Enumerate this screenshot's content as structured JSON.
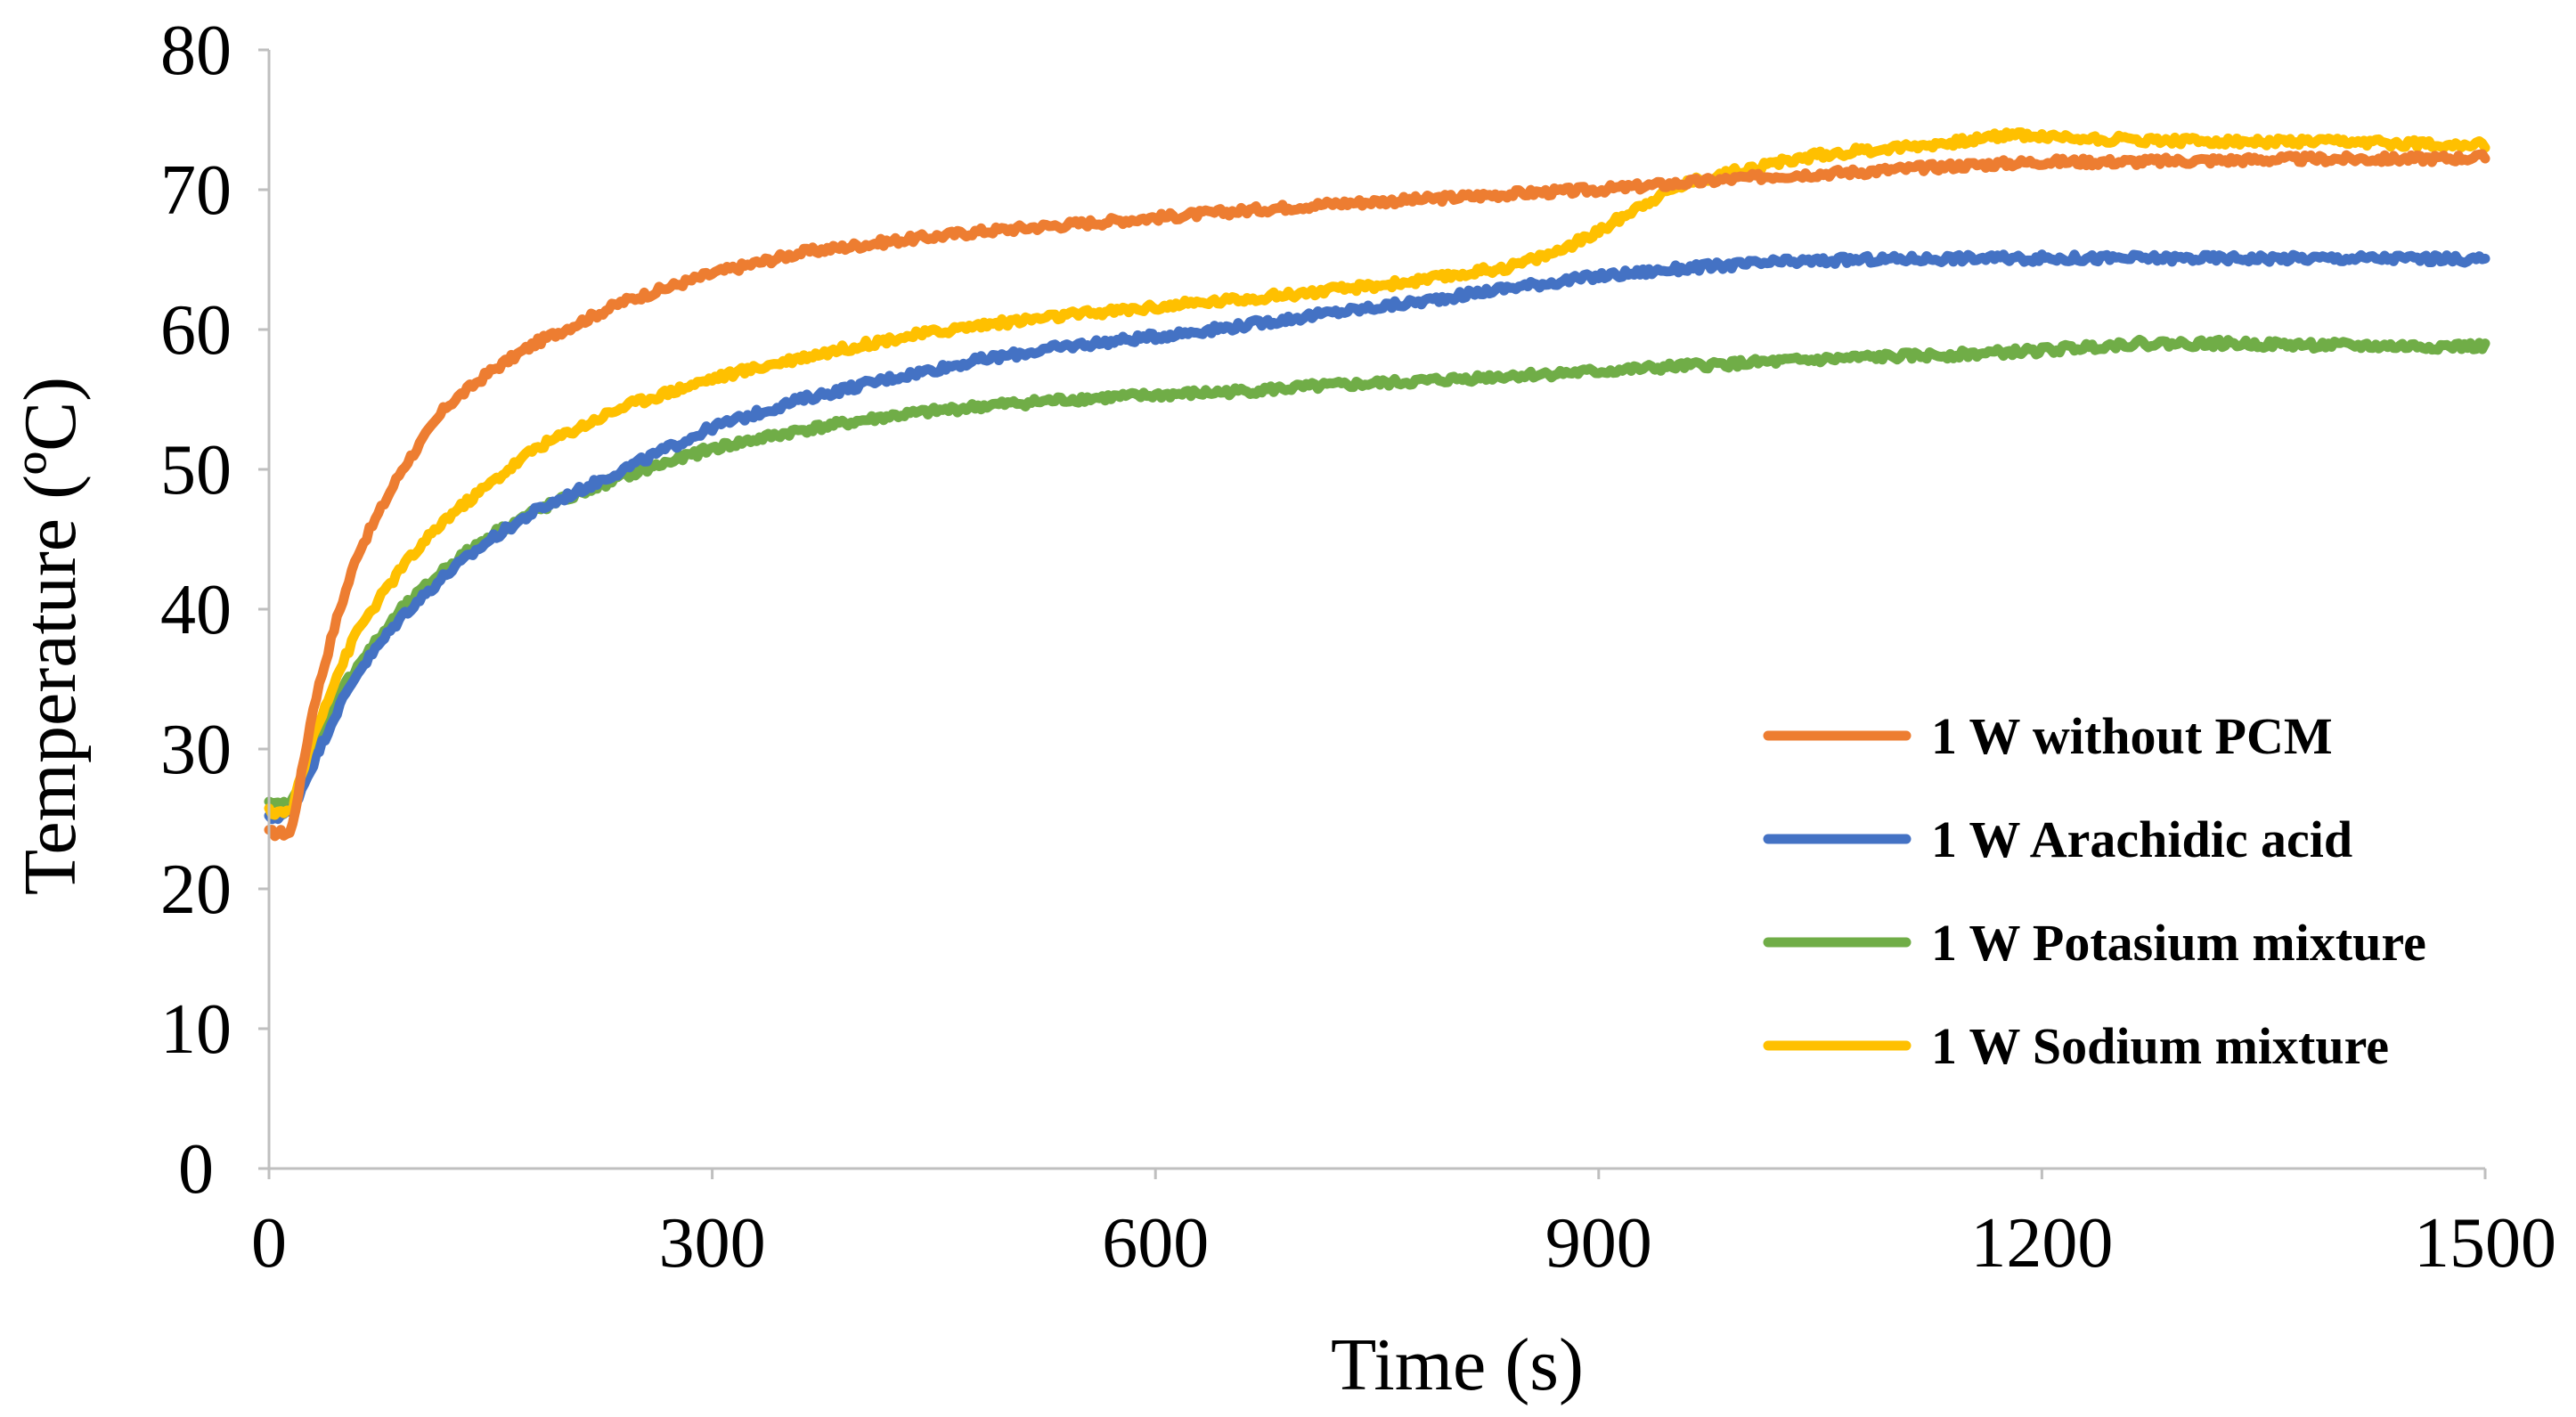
{
  "chart_data": {
    "type": "line",
    "title": "",
    "xlabel": "Time (s)",
    "ylabel": "Temperature (ºC)",
    "xlim": [
      0,
      1500
    ],
    "ylim": [
      0,
      80
    ],
    "xticks": [
      0,
      300,
      600,
      900,
      1200,
      1500
    ],
    "yticks": [
      0,
      10,
      20,
      30,
      40,
      50,
      60,
      70,
      80
    ],
    "grid": false,
    "legend_position": "bottom-right",
    "series": [
      {
        "name": "1 W without PCM",
        "color": "#ED7D31",
        "x": [
          0,
          15,
          30,
          45,
          60,
          90,
          120,
          150,
          180,
          210,
          240,
          300,
          360,
          420,
          480,
          540,
          600,
          660,
          720,
          780,
          840,
          900,
          960,
          1020,
          1080,
          1140,
          1200,
          1260,
          1320,
          1380,
          1440,
          1500
        ],
        "y": [
          24,
          24,
          33,
          39,
          44,
          50,
          54.5,
          57,
          59,
          60.5,
          62,
          64,
          65.5,
          66.3,
          67,
          67.5,
          68,
          68.5,
          69,
          69.3,
          69.7,
          70,
          70.5,
          71,
          71.3,
          71.7,
          72,
          72,
          72.1,
          72.2,
          72.2,
          72.3
        ]
      },
      {
        "name": "1 W Arachidic acid",
        "color": "#4472C4",
        "x": [
          0,
          15,
          30,
          45,
          60,
          90,
          120,
          150,
          180,
          210,
          240,
          300,
          360,
          420,
          480,
          540,
          600,
          660,
          720,
          780,
          840,
          900,
          960,
          1020,
          1080,
          1140,
          1200,
          1260,
          1320,
          1380,
          1440,
          1500
        ],
        "y": [
          25,
          25.5,
          29,
          32.5,
          35.5,
          39.5,
          42.5,
          45,
          47,
          48.5,
          50,
          53,
          55,
          56.5,
          57.8,
          58.8,
          59.5,
          60.3,
          61.2,
          62,
          63,
          63.8,
          64.4,
          64.8,
          65,
          65.1,
          65.1,
          65.1,
          65.1,
          65.1,
          65.1,
          65
        ]
      },
      {
        "name": " 1 W Potasium mixture",
        "color": "#70AD47",
        "x": [
          0,
          15,
          30,
          45,
          60,
          90,
          120,
          150,
          180,
          210,
          240,
          300,
          360,
          420,
          480,
          540,
          600,
          660,
          720,
          780,
          840,
          900,
          960,
          1020,
          1080,
          1140,
          1200,
          1260,
          1320,
          1380,
          1440,
          1500
        ],
        "y": [
          26,
          26,
          30,
          33.5,
          36,
          40,
          43,
          45.3,
          47,
          48.3,
          49.5,
          51.5,
          52.8,
          53.8,
          54.5,
          55,
          55.3,
          55.6,
          56,
          56.3,
          56.7,
          57,
          57.4,
          57.7,
          58,
          58.2,
          58.5,
          59,
          59,
          58.9,
          58.8,
          58.8
        ]
      },
      {
        "name": "1 W Sodium mixture",
        "color": "#FFC000",
        "x": [
          0,
          15,
          30,
          45,
          60,
          90,
          120,
          150,
          180,
          210,
          240,
          300,
          360,
          420,
          480,
          540,
          600,
          660,
          720,
          780,
          840,
          870,
          900,
          930,
          960,
          1000,
          1050,
          1100,
          1150,
          1180,
          1200,
          1250,
          1300,
          1350,
          1400,
          1450,
          1500
        ],
        "y": [
          25.5,
          25.5,
          31,
          35,
          38.5,
          43,
          46.5,
          49,
          51.5,
          53,
          54.5,
          56.5,
          58,
          59.3,
          60.3,
          61,
          61.6,
          62.2,
          62.8,
          63.5,
          64.5,
          65.5,
          67,
          69,
          70.5,
          71.5,
          72.5,
          73,
          73.5,
          74,
          73.8,
          73.6,
          73.5,
          73.4,
          73.4,
          73.3,
          73.2
        ]
      }
    ]
  }
}
